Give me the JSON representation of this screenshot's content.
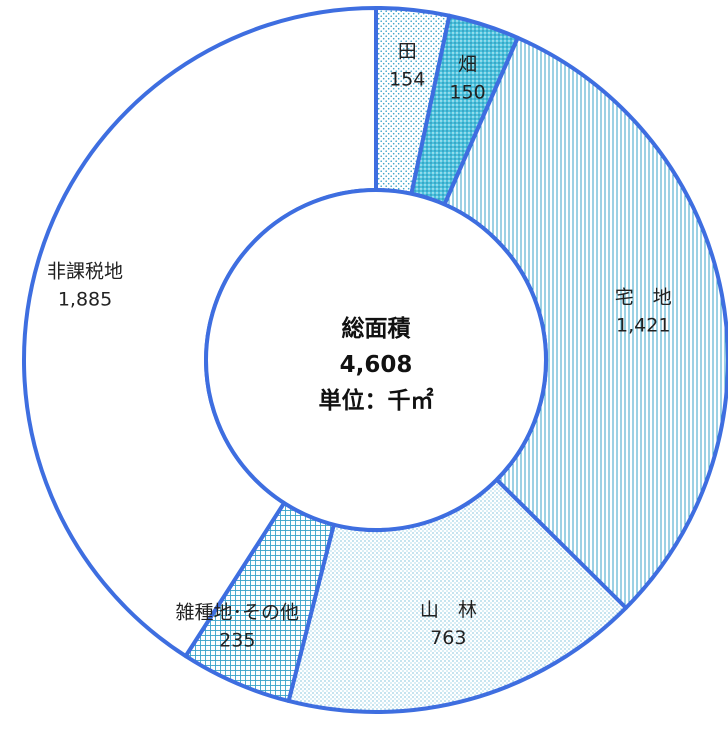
{
  "chart_data": {
    "type": "pie",
    "style": "donut",
    "center_text": {
      "title": "総面積",
      "total": "4,608",
      "unit": "単位：千㎡"
    },
    "slices": [
      {
        "label": "田",
        "value": 154,
        "value_text": "154",
        "pattern": "dots"
      },
      {
        "label": "畑",
        "value": 150,
        "value_text": "150",
        "pattern": "cyan-dense-dots"
      },
      {
        "label": "宅　地",
        "value": 1421,
        "value_text": "1,421",
        "pattern": "vertical-lines"
      },
      {
        "label": "山　林",
        "value": 763,
        "value_text": "763",
        "pattern": "fine-dots"
      },
      {
        "label": "雑種地･その他",
        "value": 235,
        "value_text": "235",
        "pattern": "grid"
      },
      {
        "label": "非課税地",
        "value": 1885,
        "value_text": "1,885",
        "pattern": "none"
      }
    ],
    "colors": {
      "border": "#3e6ee0",
      "pattern": "#3aa3c9",
      "dense_fill": "#4cc2dd",
      "background": "#ffffff"
    }
  }
}
